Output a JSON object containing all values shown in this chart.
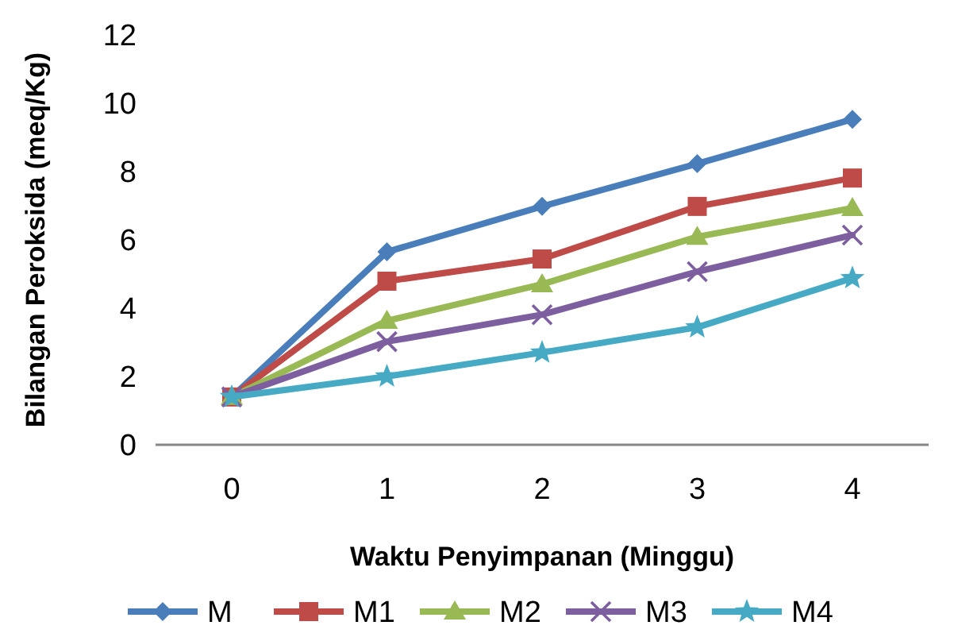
{
  "chart_data": {
    "type": "line",
    "xlabel": "Waktu Penyimpanan (Minggu)",
    "ylabel": "Bilangan Peroksida (meq/Kg)",
    "categories": [
      "0",
      "1",
      "2",
      "3",
      "4"
    ],
    "ylim": [
      0,
      12
    ],
    "yticks": [
      0,
      2,
      4,
      6,
      8,
      10,
      12
    ],
    "grid": false,
    "legend": "bottom",
    "series": [
      {
        "name": "M",
        "color": "#4a7ebb",
        "marker": "diamond",
        "values": [
          1.4,
          5.65,
          6.98,
          8.23,
          9.53
        ]
      },
      {
        "name": "M1",
        "color": "#be4b48",
        "marker": "square",
        "values": [
          1.4,
          4.79,
          5.44,
          6.98,
          7.81
        ]
      },
      {
        "name": "M2",
        "color": "#98b954",
        "marker": "triangle",
        "values": [
          1.4,
          3.63,
          4.7,
          6.09,
          6.93
        ]
      },
      {
        "name": "M3",
        "color": "#7d5fa0",
        "marker": "cross",
        "values": [
          1.4,
          3.02,
          3.81,
          5.07,
          6.14
        ]
      },
      {
        "name": "M4",
        "color": "#46aac5",
        "marker": "star",
        "values": [
          1.4,
          2.0,
          2.7,
          3.44,
          4.88
        ]
      }
    ]
  }
}
